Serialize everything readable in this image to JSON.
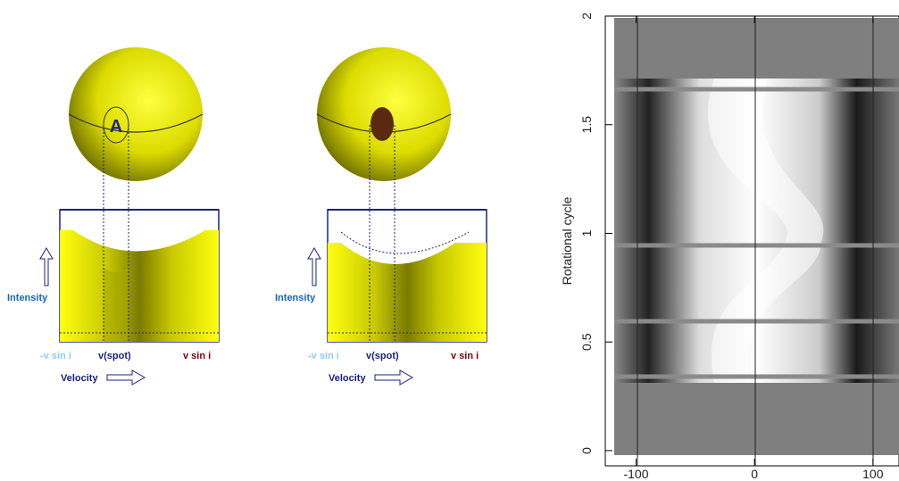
{
  "panels": [
    {
      "spot_label": "A",
      "intensity": "Intensity",
      "neg_vsini": "-v sin i",
      "vspot": "v(spot)",
      "pos_vsini": "v sin i",
      "velocity": "Velocity"
    },
    {
      "intensity": "Intensity",
      "neg_vsini": "-v sin i",
      "vspot": "v(spot)",
      "pos_vsini": "v sin i",
      "velocity": "Velocity"
    }
  ],
  "dynamic_spectrum": {
    "ylabel": "Rotational cycle",
    "xlim": [
      -126,
      122
    ],
    "ylim": [
      -0.07,
      2.0
    ],
    "xticks": [
      -100,
      0,
      100
    ],
    "yticks": [
      0,
      0.5,
      1,
      1.5,
      2
    ]
  }
}
